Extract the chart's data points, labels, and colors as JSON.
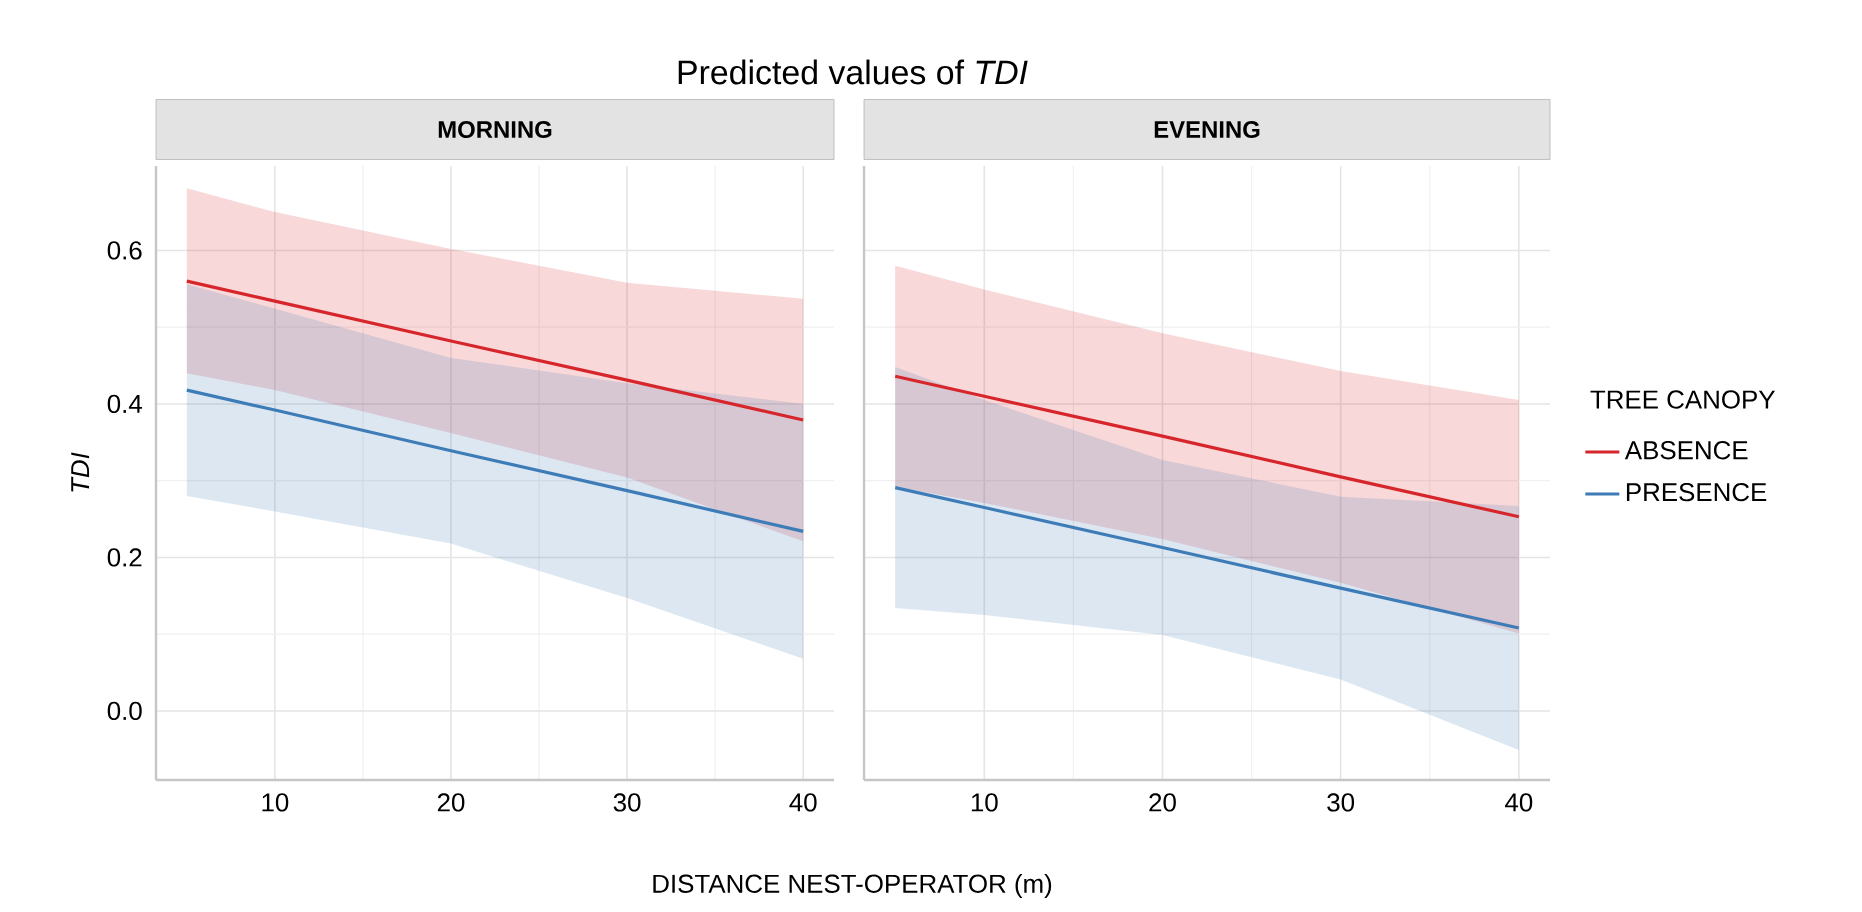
{
  "chart_data": [
    {
      "type": "line",
      "title": "Predicted values of *TDI*",
      "subtitle": "MORNING",
      "xlabel": "DISTANCE NEST-OPERATOR (m)",
      "ylabel": "*TDI*",
      "x": [
        5,
        10,
        20,
        30,
        40
      ],
      "xlim": [
        3.25,
        41.75
      ],
      "xticks": [
        10,
        20,
        30,
        40
      ],
      "ylim": [
        -0.09,
        0.71
      ],
      "yticks": [
        {
          "value": 0,
          "label": "0.0"
        },
        0.2,
        0.4,
        0.6
      ],
      "grid": true,
      "legend": false,
      "series": [
        {
          "color": "#d7262b",
          "values": [
            0.56,
            0.534,
            0.482,
            0.431,
            0.379
          ],
          "lower": [
            0.44,
            0.418,
            0.362,
            0.304,
            0.221
          ],
          "upper": [
            0.681,
            0.65,
            0.602,
            0.558,
            0.537
          ]
        },
        {
          "color": "#3e7cb8",
          "values": [
            0.418,
            0.392,
            0.339,
            0.287,
            0.234
          ],
          "lower": [
            0.28,
            0.26,
            0.218,
            0.147,
            0.068
          ],
          "upper": [
            0.556,
            0.524,
            0.46,
            0.427,
            0.4
          ]
        }
      ]
    },
    {
      "type": "line",
      "subtitle": "EVENING",
      "legend_title": "TREE CANOPY",
      "x": [
        5,
        10,
        20,
        30,
        40
      ],
      "xlim": [
        3.25,
        41.75
      ],
      "xticks": [
        10,
        20,
        30,
        40
      ],
      "ylim": [
        -0.09,
        0.71
      ],
      "yticks": [
        0,
        0.2,
        0.4,
        0.6
      ],
      "tick_labels": "x",
      "grid": true,
      "legend": "right",
      "series": [
        {
          "name": "ABSENCE",
          "color": "#d7262b",
          "values": [
            0.436,
            0.41,
            0.358,
            0.305,
            0.253
          ],
          "lower": [
            0.292,
            0.271,
            0.224,
            0.167,
            0.101
          ],
          "upper": [
            0.58,
            0.549,
            0.492,
            0.443,
            0.405
          ]
        },
        {
          "name": "PRESENCE",
          "color": "#3e7cb8",
          "values": [
            0.291,
            0.265,
            0.213,
            0.16,
            0.108
          ],
          "lower": [
            0.134,
            0.125,
            0.099,
            0.041,
            -0.051
          ],
          "upper": [
            0.448,
            0.405,
            0.327,
            0.279,
            0.267
          ]
        }
      ]
    }
  ]
}
